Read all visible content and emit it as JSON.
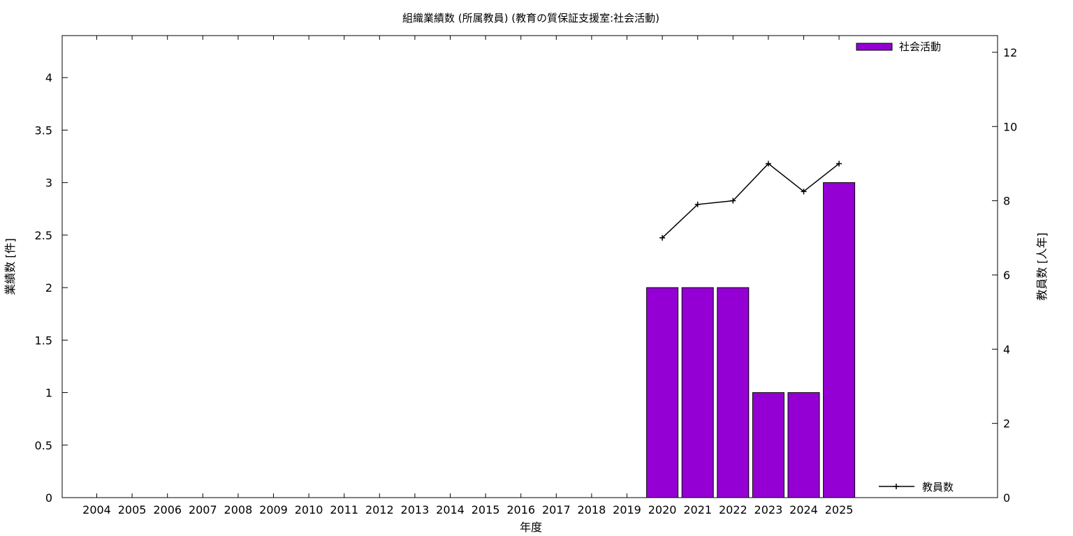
{
  "chart_data": {
    "type": "bar",
    "title": "組織業績数 (所属教員) (教育の質保証支援室:社会活動)",
    "xlabel": "年度",
    "ylabel": "業績数 [件]",
    "y2label": "教員数 [人年]",
    "categories": [
      "2004",
      "2005",
      "2006",
      "2007",
      "2008",
      "2009",
      "2010",
      "2011",
      "2012",
      "2013",
      "2014",
      "2015",
      "2016",
      "2017",
      "2018",
      "2019",
      "2020",
      "2021",
      "2022",
      "2023",
      "2024",
      "2025"
    ],
    "ylim": [
      0,
      4.4
    ],
    "yticks": [
      "0",
      "0.5",
      "1",
      "1.5",
      "2",
      "2.5",
      "3",
      "3.5",
      "4"
    ],
    "y2lim": [
      0,
      12.45
    ],
    "y2ticks": [
      "0",
      "2",
      "4",
      "6",
      "8",
      "10",
      "12"
    ],
    "grid": false,
    "series": [
      {
        "name": "社会活動",
        "kind": "bar",
        "axis": "left",
        "color": "#9400d3",
        "values": [
          null,
          null,
          null,
          null,
          null,
          null,
          null,
          null,
          null,
          null,
          null,
          null,
          null,
          null,
          null,
          null,
          2,
          2,
          2,
          1,
          1,
          3
        ]
      },
      {
        "name": "教員数",
        "kind": "line",
        "axis": "right",
        "color": "#000000",
        "values": [
          null,
          null,
          null,
          null,
          null,
          null,
          null,
          null,
          null,
          null,
          null,
          null,
          null,
          null,
          null,
          null,
          7,
          7.9,
          8,
          9,
          8.25,
          9
        ]
      }
    ],
    "legend": {
      "bars": "top-right",
      "line": "bottom-right"
    }
  }
}
